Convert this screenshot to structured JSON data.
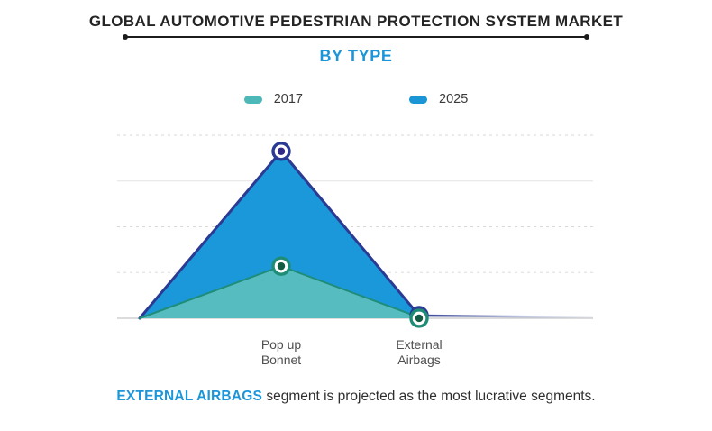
{
  "header": {
    "title": "GLOBAL AUTOMOTIVE PEDESTRIAN PROTECTION SYSTEM MARKET",
    "subtitle": "BY TYPE"
  },
  "legend": [
    {
      "label": "2017",
      "color": "#4db8b8"
    },
    {
      "label": "2025",
      "color": "#1b95d5"
    }
  ],
  "chart_data": {
    "type": "area",
    "title": "Global Automotive Pedestrian Protection System Market, By Type",
    "categories": [
      "Pop up Bonnet",
      "External Airbags"
    ],
    "series": [
      {
        "name": "2017",
        "values": [
          1.14,
          0.02
        ],
        "fill": "#57bcc0",
        "stroke": "#1f8d7a",
        "marker_ring": "#1f8d76",
        "marker_dot": "#115c43"
      },
      {
        "name": "2025",
        "values": [
          3.65,
          0.06
        ],
        "fill": "#1b98d9",
        "stroke": "#2b3a92",
        "marker_ring": "#2b3a92",
        "marker_dot": "#322a86"
      }
    ],
    "xlabel": "",
    "ylabel": "",
    "ylim": [
      0,
      4
    ],
    "gridline_count": 5,
    "grid_visible": true,
    "legend_position": "top",
    "value_axis_labels_visible": false
  },
  "footer": {
    "highlight": "EXTERNAL AIRBAGS",
    "text": " segment is projected as the most lucrative segments."
  }
}
